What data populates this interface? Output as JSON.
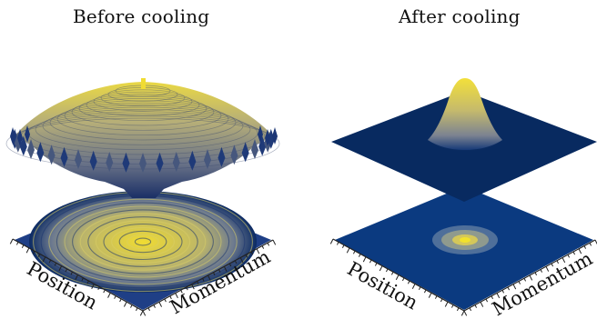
{
  "panels": [
    {
      "title": "Before cooling",
      "xlabel": "Position",
      "ylabel": "Momentum",
      "surface": "ring-interference",
      "description_visible": false
    },
    {
      "title": "After cooling",
      "xlabel": "Position",
      "ylabel": "Momentum",
      "surface": "single-peak"
    }
  ],
  "colors": {
    "low": "#0b2a63",
    "mid": "#5a6f8c",
    "high": "#f0dc32",
    "plane": "#0a3a7a",
    "axis": "#222222"
  }
}
